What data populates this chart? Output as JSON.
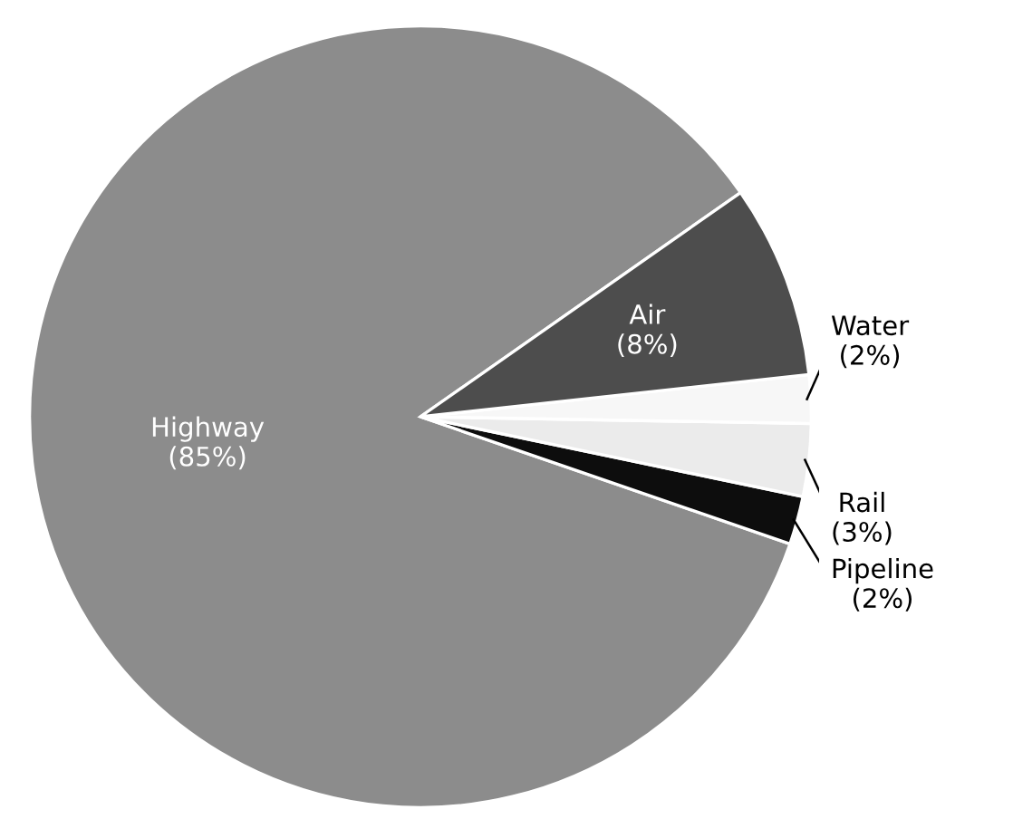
{
  "chart_data": {
    "type": "pie",
    "categories": [
      "Highway",
      "Pipeline",
      "Rail",
      "Water",
      "Air"
    ],
    "values": [
      85,
      2,
      3,
      2,
      8
    ],
    "value_labels": [
      "(85%)",
      "(2%)",
      "(3%)",
      "(2%)",
      "(8%)"
    ],
    "colors": [
      "#8c8c8c",
      "#0d0d0d",
      "#ebebeb",
      "#f7f7f7",
      "#4d4d4d"
    ],
    "legend": false
  }
}
